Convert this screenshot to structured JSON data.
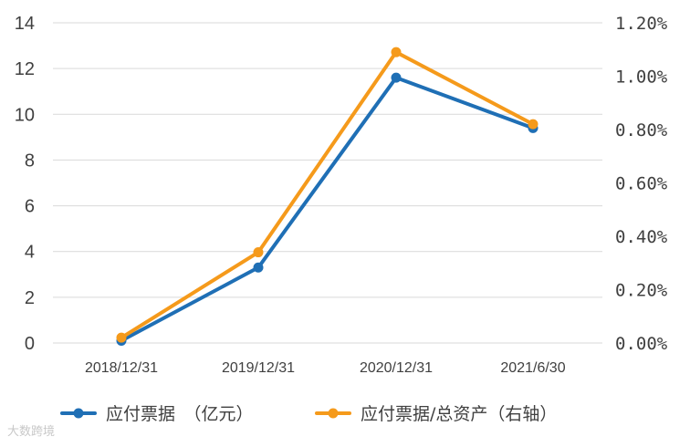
{
  "chart_data": {
    "type": "line",
    "categories": [
      "2018/12/31",
      "2019/12/31",
      "2020/12/31",
      "2021/6/30"
    ],
    "series": [
      {
        "name": "应付票据　（亿元）",
        "axis": "left",
        "color": "#1f6fb5",
        "values": [
          0.1,
          3.3,
          11.6,
          9.4
        ]
      },
      {
        "name": "应付票据/总资产（右轴）",
        "axis": "right",
        "color": "#f59a1b",
        "values": [
          0.0002,
          0.0034,
          0.0109,
          0.0082
        ]
      }
    ],
    "y_left": {
      "ylim": [
        0,
        14
      ],
      "ticks": [
        "0",
        "2",
        "4",
        "6",
        "8",
        "10",
        "12",
        "14"
      ]
    },
    "y_right": {
      "ylim": [
        0,
        0.012
      ],
      "ticks": [
        "0.00%",
        "0.20%",
        "0.40%",
        "0.60%",
        "0.80%",
        "1.00%",
        "1.20%"
      ]
    },
    "grid": true,
    "legend_position": "bottom"
  },
  "watermark": "大数跨境"
}
